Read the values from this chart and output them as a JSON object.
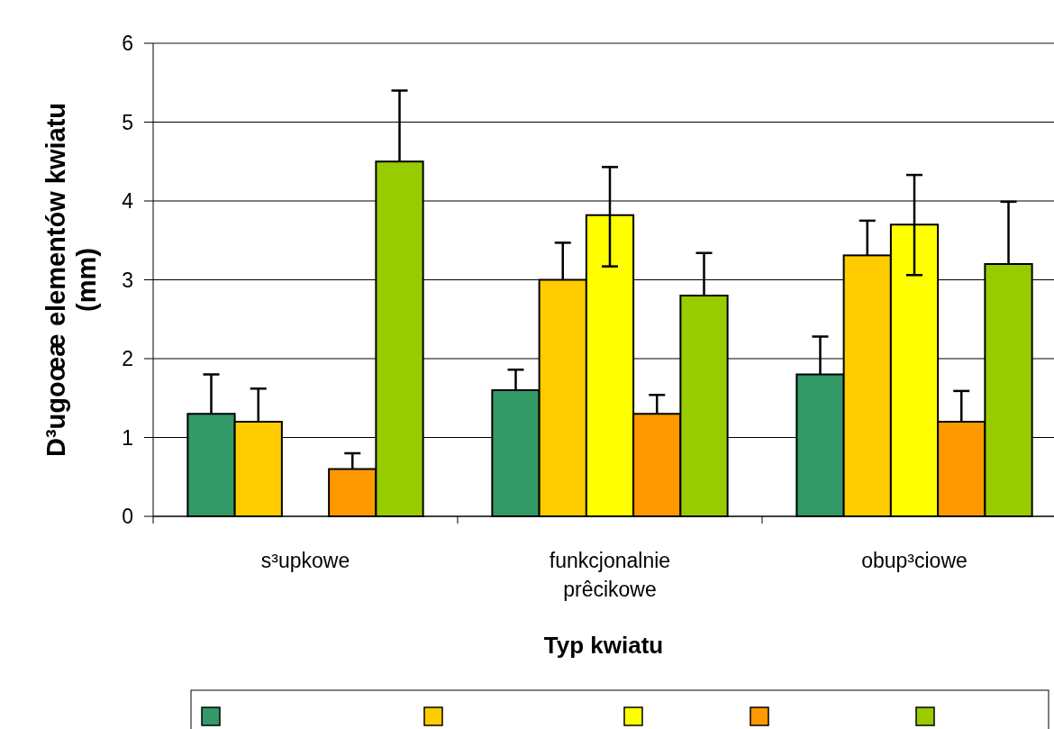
{
  "chart_data": {
    "type": "bar",
    "xlabel": "Typ kwiatu",
    "ylabel": "D³ugoœæ elementów kwiatu (mm)",
    "categories": [
      "s³upkowe",
      "funkcjonalnie prêcikowe",
      "obup³ciowe"
    ],
    "series": [
      {
        "color": "#339966",
        "values": [
          1.3,
          1.6,
          1.8
        ],
        "errors": [
          [
            1.3,
            1.8
          ],
          [
            1.6,
            1.86
          ],
          [
            1.8,
            2.28
          ]
        ]
      },
      {
        "color": "#ffcc00",
        "values": [
          1.2,
          3.0,
          3.31
        ],
        "errors": [
          [
            1.2,
            1.62
          ],
          [
            3.0,
            3.47
          ],
          [
            3.31,
            3.75
          ]
        ]
      },
      {
        "color": "#ffff00",
        "values": [
          0,
          3.82,
          3.7
        ],
        "errors": [
          null,
          [
            3.17,
            4.43
          ],
          [
            3.06,
            4.33
          ]
        ]
      },
      {
        "color": "#ff9900",
        "values": [
          0.6,
          1.3,
          1.2
        ],
        "errors": [
          [
            0.6,
            0.8
          ],
          [
            1.3,
            1.54
          ],
          [
            1.2,
            1.59
          ]
        ]
      },
      {
        "color": "#99cc00",
        "values": [
          4.5,
          2.8,
          3.2
        ],
        "errors": [
          [
            4.5,
            5.4
          ],
          [
            2.8,
            3.34
          ],
          [
            3.2,
            3.99
          ]
        ]
      }
    ],
    "ylim": [
      0,
      6
    ],
    "yticks": [
      0,
      1,
      2,
      3,
      4,
      5,
      6
    ],
    "grid": "y"
  }
}
